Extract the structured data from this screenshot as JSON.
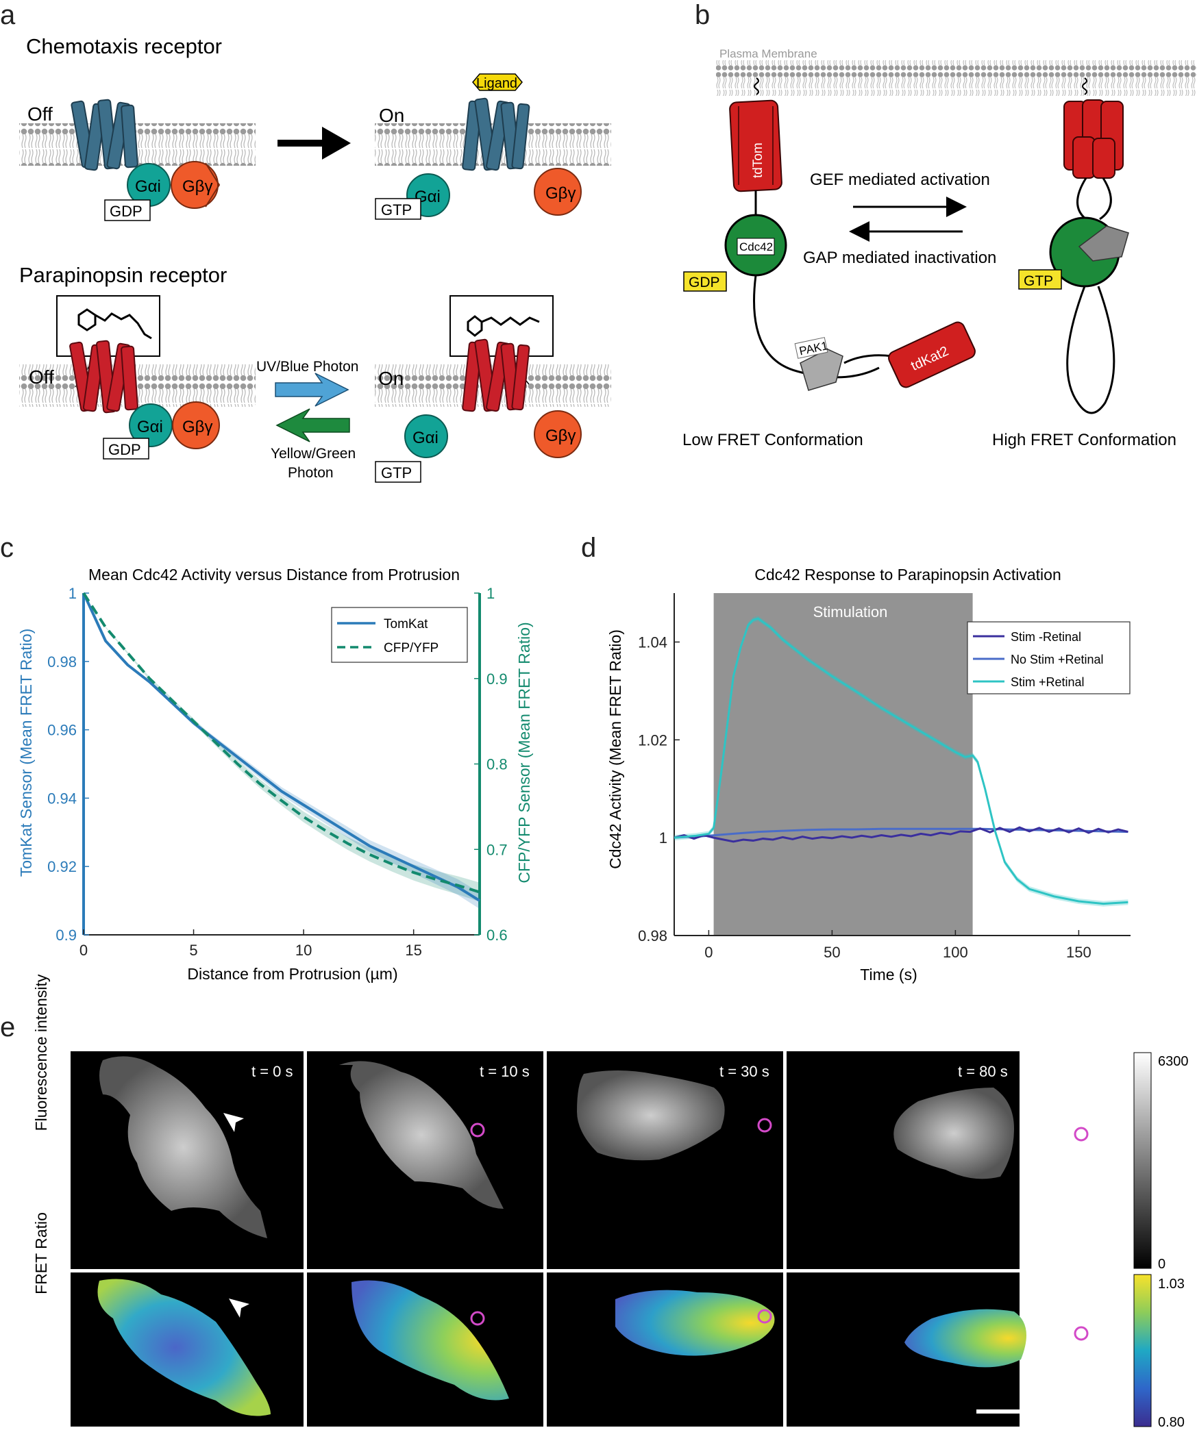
{
  "panels": {
    "a": {
      "letter": "a",
      "chemotaxis_title": "Chemotaxis receptor",
      "parapinopsin_title": "Parapinopsin receptor",
      "off": "Off",
      "on": "On",
      "ligand": "Ligand",
      "galpha": "Gαi",
      "gbetagamma": "Gβγ",
      "gdp": "GDP",
      "gtp": "GTP",
      "uv_blue": "UV/Blue Photon",
      "yellow_green_1": "Yellow/Green",
      "yellow_green_2": "Photon"
    },
    "b": {
      "letter": "b",
      "plasma_membrane": "Plasma Membrane",
      "tdtom": "tdTom",
      "cdc42": "Cdc42",
      "gdp": "GDP",
      "gtp": "GTP",
      "pak1": "PAK1",
      "tdkat2": "tdKat2",
      "gef": "GEF mediated activation",
      "gap": "GAP mediated inactivation",
      "low_fret": "Low FRET Conformation",
      "high_fret": "High FRET Conformation"
    },
    "c": {
      "letter": "c"
    },
    "d": {
      "letter": "d",
      "stimulation": "Stimulation"
    },
    "e": {
      "letter": "e",
      "row1_label": "Fluorescence intensity",
      "row2_label": "FRET Ratio",
      "times": [
        "t = 0 s",
        "t = 10 s",
        "t = 30 s",
        "t = 80 s"
      ],
      "cbar1_max": "6300",
      "cbar1_min": "0",
      "cbar2_max": "1.03",
      "cbar2_min": "0.80"
    }
  },
  "colors": {
    "receptor_blue": "#3d6f8a",
    "receptor_red": "#c8202a",
    "galpha": "#12a396",
    "gbg": "#ef5a2a",
    "ligand": "#f5d90a",
    "arrow_blue": "#4fa3d6",
    "arrow_green": "#1e8a3e",
    "tomkat": "#2b7bb9",
    "cfp": "#138a6e",
    "stim_neg": "#3a2f9e",
    "nostim": "#4a6cc8",
    "stim_pos": "#2ec4c4"
  },
  "chart_data": [
    {
      "type": "line",
      "title": "Mean Cdc42 Activity versus Distance from Protrusion",
      "xlabel": "Distance from Protrusion (µm)",
      "ylabel": "TomKat Sensor (Mean FRET Ratio)",
      "y2label": "CFP/YFP Sensor (Mean FRET Ratio)",
      "xlim": [
        0,
        18
      ],
      "ylim": [
        0.9,
        1.0
      ],
      "y2lim": [
        0.6,
        1.0
      ],
      "xticks": [
        "0",
        "5",
        "10",
        "15"
      ],
      "yticks": [
        "0.9",
        "0.92",
        "0.94",
        "0.96",
        "0.98",
        "1"
      ],
      "y2ticks": [
        "0.6",
        "0.7",
        "0.8",
        "0.9",
        "1"
      ],
      "legend_position": "top-right",
      "series": [
        {
          "name": "TomKat",
          "axis": "left",
          "x": [
            0,
            1,
            2,
            3,
            4,
            5,
            6,
            7,
            8,
            9,
            10,
            11,
            12,
            13,
            14,
            15,
            16,
            17,
            18
          ],
          "y": [
            1.0,
            0.986,
            0.979,
            0.974,
            0.968,
            0.962,
            0.957,
            0.952,
            0.947,
            0.942,
            0.938,
            0.934,
            0.93,
            0.926,
            0.923,
            0.92,
            0.917,
            0.914,
            0.91
          ]
        },
        {
          "name": "CFP/YFP",
          "axis": "right",
          "x": [
            0,
            1,
            2,
            3,
            4,
            5,
            6,
            7,
            8,
            9,
            10,
            11,
            12,
            13,
            14,
            15,
            16,
            17,
            18
          ],
          "y": [
            1.0,
            0.96,
            0.93,
            0.9,
            0.875,
            0.85,
            0.825,
            0.8,
            0.777,
            0.757,
            0.738,
            0.722,
            0.707,
            0.694,
            0.683,
            0.673,
            0.665,
            0.658,
            0.65
          ]
        }
      ]
    },
    {
      "type": "line",
      "title": "Cdc42 Response to Parapinopsin Activation",
      "xlabel": "Time (s)",
      "ylabel": "Cdc42 Activity (Mean FRET Ratio)",
      "xlim": [
        -14,
        171
      ],
      "ylim": [
        0.98,
        1.05
      ],
      "xticks": [
        "0",
        "50",
        "100",
        "150"
      ],
      "yticks": [
        "0.98",
        "1",
        "1.02",
        "1.04"
      ],
      "stimulation_window": [
        2,
        107
      ],
      "legend_position": "top-right",
      "series": [
        {
          "name": "Stim -Retinal",
          "x": [
            -14,
            -10,
            -6,
            -2,
            2,
            6,
            10,
            14,
            18,
            22,
            26,
            30,
            34,
            38,
            42,
            46,
            50,
            54,
            58,
            62,
            66,
            70,
            74,
            78,
            82,
            86,
            90,
            94,
            98,
            102,
            106,
            110,
            114,
            118,
            122,
            126,
            130,
            134,
            138,
            142,
            146,
            150,
            154,
            158,
            162,
            166,
            170
          ],
          "y": [
            1.0,
            1.0005,
            0.9998,
            1.0005,
            1.0,
            0.9996,
            0.9992,
            0.9996,
            0.9994,
            0.9998,
            0.9996,
            1.0001,
            0.9997,
            1.0002,
            0.9998,
            1.0001,
            0.9999,
            1.0003,
            1.0,
            1.0004,
            1.0001,
            1.0005,
            1.0002,
            1.0006,
            1.0003,
            1.0008,
            1.0005,
            1.001,
            1.0007,
            1.0013,
            1.0012,
            1.0019,
            1.0011,
            1.002,
            1.0012,
            1.0021,
            1.0013,
            1.002,
            1.0012,
            1.0019,
            1.0011,
            1.0019,
            1.001,
            1.0018,
            1.0011,
            1.0017,
            1.0012
          ]
        },
        {
          "name": "No Stim +Retinal",
          "x": [
            -14,
            0,
            10,
            20,
            30,
            40,
            50,
            60,
            70,
            80,
            90,
            100,
            110,
            120,
            130,
            140,
            150,
            160,
            170
          ],
          "y": [
            1.0,
            1.0004,
            1.0008,
            1.0012,
            1.0014,
            1.0016,
            1.0017,
            1.0017,
            1.0018,
            1.0018,
            1.0018,
            1.0018,
            1.0018,
            1.0017,
            1.0016,
            1.0015,
            1.0014,
            1.0013,
            1.0012
          ]
        },
        {
          "name": "Stim +Retinal",
          "x": [
            -14,
            -5,
            0,
            2,
            5,
            8,
            10,
            13,
            16,
            18,
            20,
            25,
            30,
            40,
            50,
            60,
            70,
            80,
            90,
            100,
            104,
            107,
            109,
            112,
            116,
            120,
            125,
            130,
            140,
            150,
            160,
            170
          ],
          "y": [
            1.0,
            1.0004,
            1.0008,
            1.002,
            1.013,
            1.025,
            1.033,
            1.039,
            1.0435,
            1.0445,
            1.0448,
            1.043,
            1.0405,
            1.0365,
            1.033,
            1.0298,
            1.0265,
            1.0235,
            1.0205,
            1.0175,
            1.0165,
            1.0168,
            1.0155,
            1.01,
            1.0015,
            0.995,
            0.9915,
            0.9895,
            0.988,
            0.987,
            0.9865,
            0.9868
          ]
        }
      ]
    }
  ]
}
